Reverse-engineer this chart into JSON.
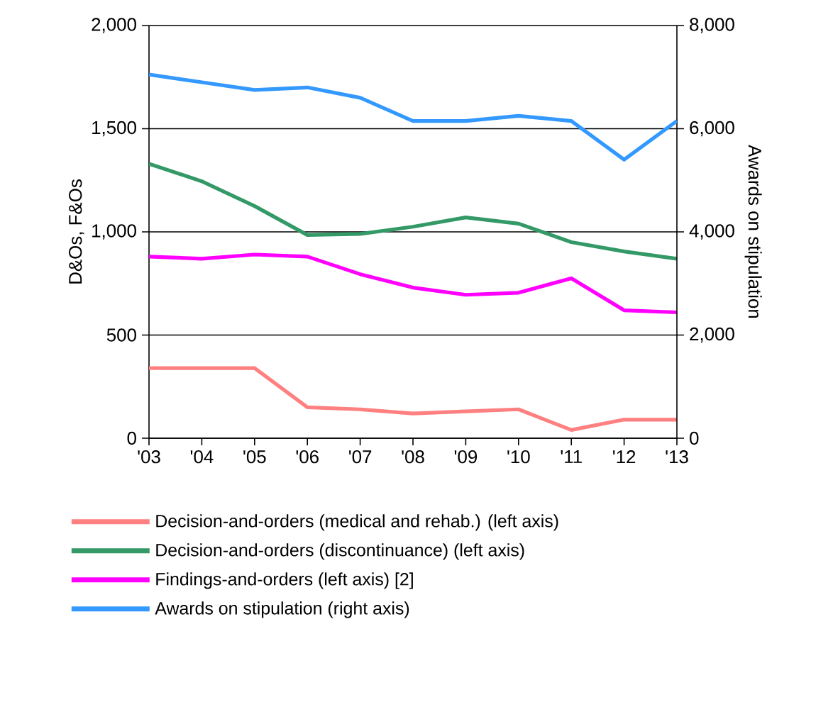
{
  "chart_data": {
    "type": "line",
    "categories": [
      "'03",
      "'04",
      "'05",
      "'06",
      "'07",
      "'08",
      "'09",
      "'10",
      "'11",
      "'12",
      "'13"
    ],
    "ylabel": "D&Os, F&Os",
    "y2label": "Awards on stipulation",
    "ylim": [
      0,
      2000
    ],
    "yticks": [
      {
        "value": 0,
        "label": "0"
      },
      {
        "value": 500,
        "label": "500"
      },
      {
        "value": 1000,
        "label": "1,000"
      },
      {
        "value": 1500,
        "label": "1,500"
      },
      {
        "value": 2000,
        "label": "2,000"
      }
    ],
    "y2lim": [
      0,
      8000
    ],
    "y2ticks": [
      {
        "value": 0,
        "label": "0"
      },
      {
        "value": 2000,
        "label": "2,000"
      },
      {
        "value": 4000,
        "label": "4,000"
      },
      {
        "value": 6000,
        "label": "6,000"
      },
      {
        "value": 8000,
        "label": "8,000"
      }
    ],
    "grid": "y",
    "legend": "bottom",
    "marker": "none",
    "line_style": "solid",
    "series": [
      {
        "name": "Decision-and-orders (medical and rehab.) (left axis)",
        "color": "#ff8080",
        "values": [
          340,
          340,
          340,
          150,
          140,
          120,
          130,
          140,
          40,
          90,
          90
        ]
      },
      {
        "name": "Decision-and-orders (discontinuance) (left axis)",
        "color": "#339966",
        "values": [
          1330,
          1245,
          1125,
          985,
          990,
          1025,
          1070,
          1040,
          950,
          905,
          870
        ]
      },
      {
        "name": "Findings-and-orders (left axis) [2]",
        "color": "#ff00ff",
        "values": [
          880,
          870,
          890,
          880,
          795,
          730,
          695,
          705,
          775,
          620,
          610
        ]
      },
      {
        "name": "Awards on stipulation (right axis)",
        "color": "#3399ff",
        "axis": "y2",
        "values": [
          7050,
          6900,
          6750,
          6800,
          6600,
          6150,
          6150,
          6250,
          6150,
          5400,
          6150
        ]
      }
    ]
  }
}
